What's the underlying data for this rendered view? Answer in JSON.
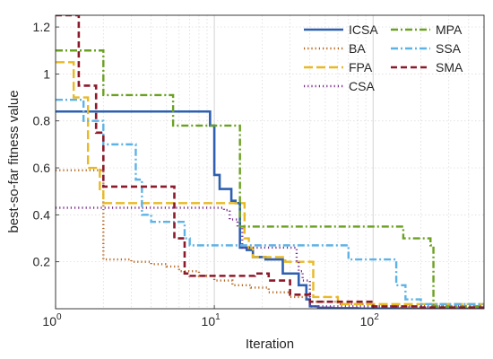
{
  "chart_data": {
    "type": "line",
    "xlabel": "Iteration",
    "ylabel": "best-so-far fitness value",
    "xscale": "log",
    "xlim": [
      1,
      500
    ],
    "ylim": [
      0,
      1.25
    ],
    "grid": true,
    "legend_position": "top-right",
    "x_ticks": [
      {
        "value": 1,
        "base": "10",
        "exp": "0"
      },
      {
        "value": 10,
        "base": "10",
        "exp": "1"
      },
      {
        "value": 100,
        "base": "10",
        "exp": "2"
      }
    ],
    "y_ticks": [
      {
        "value": 0.2,
        "label": "0.2"
      },
      {
        "value": 0.4,
        "label": "0.4"
      },
      {
        "value": 0.6,
        "label": "0.6"
      },
      {
        "value": 0.8,
        "label": "0.8"
      },
      {
        "value": 1.0,
        "label": "1"
      },
      {
        "value": 1.2,
        "label": "1.2"
      }
    ],
    "series": [
      {
        "name": "ICSA",
        "color": "#2e5fb0",
        "dash": "solid",
        "x": [
          1,
          8.5,
          9.4,
          10,
          10.8,
          12.8,
          13.6,
          14.5,
          16,
          17.5,
          21,
          27,
          34,
          38,
          40,
          45,
          55,
          80,
          150,
          500
        ],
        "y": [
          0.84,
          0.84,
          0.78,
          0.57,
          0.51,
          0.46,
          0.45,
          0.26,
          0.25,
          0.22,
          0.21,
          0.15,
          0.1,
          0.04,
          0.01,
          0.004,
          0.002,
          0.001,
          0.0005,
          0.0003
        ]
      },
      {
        "name": "BA",
        "color": "#b5651d",
        "dash": "dot",
        "x": [
          1,
          2,
          3,
          4,
          5,
          6,
          8,
          10,
          13,
          17,
          22,
          30,
          40,
          60,
          100,
          150,
          250,
          500
        ],
        "y": [
          0.59,
          0.21,
          0.2,
          0.19,
          0.18,
          0.16,
          0.14,
          0.12,
          0.1,
          0.09,
          0.07,
          0.05,
          0.03,
          0.02,
          0.01,
          0.006,
          0.004,
          0.003
        ]
      },
      {
        "name": "FPA",
        "color": "#e8b923",
        "dash": "longdash",
        "x": [
          1,
          1.3,
          1.6,
          1.9,
          2,
          10,
          14,
          15.5,
          16.5,
          17.5,
          27,
          28,
          40,
          42,
          55,
          60,
          500
        ],
        "y": [
          1.05,
          0.9,
          0.6,
          0.5,
          0.45,
          0.45,
          0.45,
          0.3,
          0.26,
          0.22,
          0.22,
          0.2,
          0.2,
          0.05,
          0.05,
          0.02,
          0.02
        ]
      },
      {
        "name": "CSA",
        "color": "#7e2f8e",
        "dash": "dot",
        "x": [
          1,
          10.5,
          11.5,
          12.5,
          14,
          15,
          20,
          33,
          34,
          36,
          40,
          500
        ],
        "y": [
          0.43,
          0.43,
          0.42,
          0.38,
          0.35,
          0.26,
          0.26,
          0.2,
          0.16,
          0.12,
          0.01,
          0.01
        ]
      },
      {
        "name": "MPA",
        "color": "#6aa121",
        "dash": "dashdot",
        "x": [
          1,
          2,
          4,
          5.5,
          8.5,
          13,
          14.5,
          15,
          150,
          155,
          200,
          230,
          240,
          500
        ],
        "y": [
          1.1,
          0.91,
          0.91,
          0.78,
          0.78,
          0.78,
          0.35,
          0.35,
          0.35,
          0.3,
          0.3,
          0.27,
          0.01,
          0.01
        ]
      },
      {
        "name": "SSA",
        "color": "#5eb3e6",
        "dash": "dashdot",
        "x": [
          1,
          1.5,
          2,
          3,
          3.2,
          3.5,
          4,
          6,
          6.5,
          7,
          16,
          17,
          60,
          70,
          120,
          140,
          160,
          200,
          500
        ],
        "y": [
          0.89,
          0.8,
          0.7,
          0.7,
          0.55,
          0.4,
          0.37,
          0.37,
          0.3,
          0.27,
          0.27,
          0.27,
          0.27,
          0.21,
          0.21,
          0.1,
          0.04,
          0.02,
          0.01
        ]
      },
      {
        "name": "SMA",
        "color": "#8b1a2b",
        "dash": "dash",
        "x": [
          1,
          1.4,
          1.8,
          2,
          3.2,
          5.2,
          5.6,
          6.5,
          7,
          14,
          16,
          18,
          22,
          30,
          40,
          100,
          200,
          500
        ],
        "y": [
          1.25,
          0.95,
          0.75,
          0.52,
          0.52,
          0.52,
          0.3,
          0.15,
          0.14,
          0.14,
          0.14,
          0.15,
          0.12,
          0.06,
          0.03,
          0.01,
          0.005,
          0.004
        ]
      }
    ]
  }
}
